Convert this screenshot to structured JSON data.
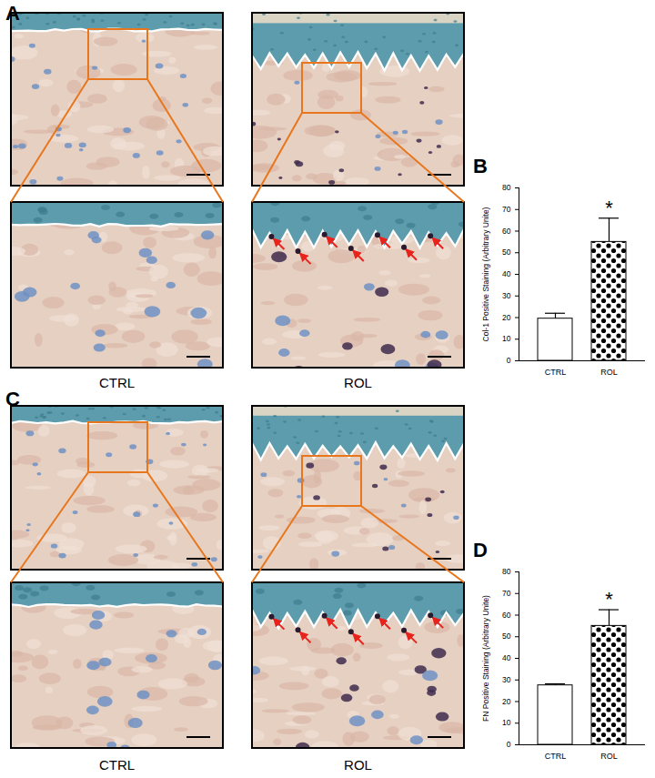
{
  "figure": {
    "panels": [
      {
        "label": "A",
        "captions": [
          "CTRL",
          "ROL"
        ]
      },
      {
        "label": "C",
        "captions": [
          "CTRL",
          "ROL"
        ]
      }
    ]
  },
  "chart_data": [
    {
      "panel": "B",
      "type": "bar",
      "y_label": "Col-1 Positive Staining (Arbitrary Unite)",
      "categories": [
        "CTRL",
        "ROL"
      ],
      "values": [
        19.5,
        55
      ],
      "errors": [
        2.5,
        11
      ],
      "colors": [
        "#ffffff",
        "#000000"
      ],
      "ylim": [
        0,
        80
      ],
      "yticks": [
        0,
        10,
        20,
        30,
        40,
        50,
        60,
        70,
        80
      ],
      "annotations": [
        {
          "category": "ROL",
          "text": "*"
        }
      ]
    },
    {
      "panel": "D",
      "type": "bar",
      "y_label": "FN Positive Staining (Arbitrary Unite)",
      "categories": [
        "CTRL",
        "ROL"
      ],
      "values": [
        27.5,
        55
      ],
      "errors": [
        0.7,
        7.5
      ],
      "colors": [
        "#ffffff",
        "#000000"
      ],
      "ylim": [
        0,
        80
      ],
      "yticks": [
        0,
        10,
        20,
        30,
        40,
        50,
        60,
        70,
        80
      ],
      "annotations": [
        {
          "category": "ROL",
          "text": "*"
        }
      ]
    }
  ]
}
